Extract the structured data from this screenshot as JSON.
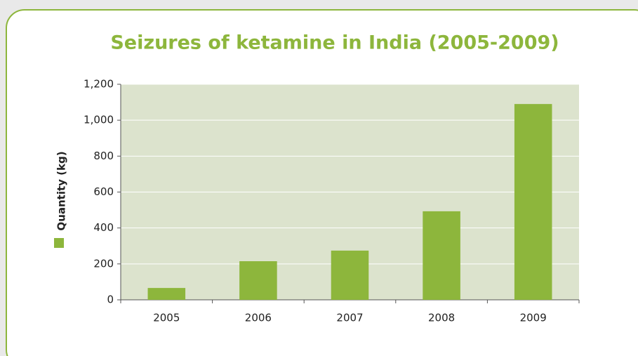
{
  "chart_data": {
    "type": "bar",
    "title": "Seizures of ketamine in India (2005-2009)",
    "y_label": "Quantity (kg)",
    "categories": [
      "2005",
      "2006",
      "2007",
      "2008",
      "2009"
    ],
    "values": [
      66,
      215,
      274,
      493,
      1090
    ],
    "color": "#8db63c",
    "ylim": [
      0,
      1200
    ],
    "yticks": [
      0,
      200,
      400,
      600,
      800,
      {
        "value": 1000,
        "label": "1,000"
      },
      {
        "value": 1200,
        "label": "1,200"
      }
    ],
    "grid": true
  }
}
